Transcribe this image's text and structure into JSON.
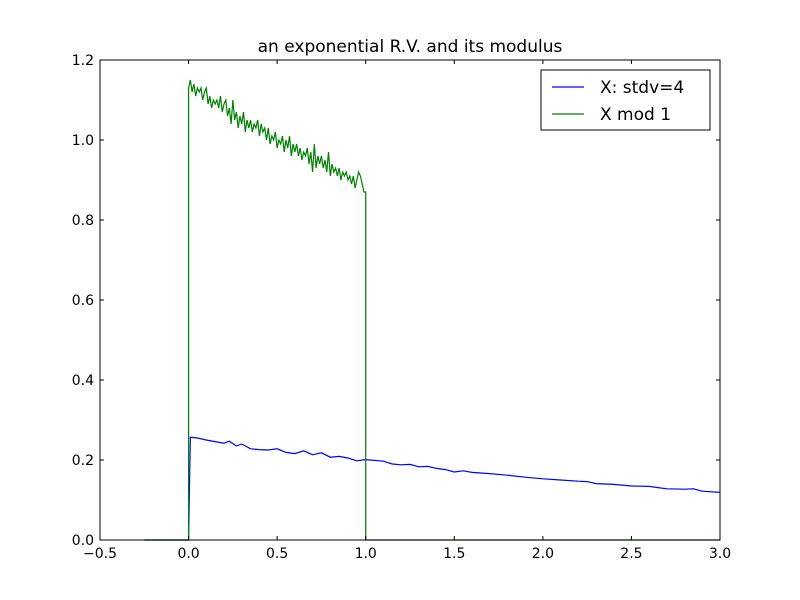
{
  "chart_data": {
    "type": "line",
    "title": "an exponential R.V. and its modulus",
    "xlabel": "",
    "ylabel": "",
    "xlim": [
      -0.5,
      3.0
    ],
    "ylim": [
      0.0,
      1.2
    ],
    "xticks": [
      -0.5,
      0.0,
      0.5,
      1.0,
      1.5,
      2.0,
      2.5,
      3.0
    ],
    "xtick_labels": [
      "−0.5",
      "0.0",
      "0.5",
      "1.0",
      "1.5",
      "2.0",
      "2.5",
      "3.0"
    ],
    "yticks": [
      0.0,
      0.2,
      0.4,
      0.6,
      0.8,
      1.0,
      1.2
    ],
    "ytick_labels": [
      "0.0",
      "0.2",
      "0.4",
      "0.6",
      "0.8",
      "1.0",
      "1.2"
    ],
    "grid": false,
    "legend_position": "top-right",
    "series": [
      {
        "name": "X: stdv=4",
        "color": "#0000ff",
        "points": [
          [
            -0.25,
            0.0
          ],
          [
            0.0,
            0.0
          ],
          [
            0.01,
            0.257
          ],
          [
            0.05,
            0.255
          ],
          [
            0.1,
            0.25
          ],
          [
            0.15,
            0.246
          ],
          [
            0.2,
            0.242
          ],
          [
            0.23,
            0.247
          ],
          [
            0.27,
            0.235
          ],
          [
            0.3,
            0.24
          ],
          [
            0.35,
            0.228
          ],
          [
            0.4,
            0.226
          ],
          [
            0.45,
            0.225
          ],
          [
            0.5,
            0.228
          ],
          [
            0.55,
            0.219
          ],
          [
            0.6,
            0.216
          ],
          [
            0.65,
            0.223
          ],
          [
            0.7,
            0.213
          ],
          [
            0.75,
            0.218
          ],
          [
            0.8,
            0.207
          ],
          [
            0.85,
            0.209
          ],
          [
            0.9,
            0.205
          ],
          [
            0.95,
            0.198
          ],
          [
            1.0,
            0.201
          ],
          [
            1.05,
            0.199
          ],
          [
            1.1,
            0.197
          ],
          [
            1.15,
            0.19
          ],
          [
            1.2,
            0.188
          ],
          [
            1.25,
            0.189
          ],
          [
            1.3,
            0.183
          ],
          [
            1.35,
            0.184
          ],
          [
            1.4,
            0.179
          ],
          [
            1.45,
            0.176
          ],
          [
            1.5,
            0.17
          ],
          [
            1.55,
            0.173
          ],
          [
            1.6,
            0.169
          ],
          [
            1.7,
            0.166
          ],
          [
            1.8,
            0.162
          ],
          [
            1.9,
            0.157
          ],
          [
            2.0,
            0.153
          ],
          [
            2.1,
            0.15
          ],
          [
            2.2,
            0.147
          ],
          [
            2.25,
            0.146
          ],
          [
            2.3,
            0.141
          ],
          [
            2.4,
            0.139
          ],
          [
            2.5,
            0.135
          ],
          [
            2.6,
            0.134
          ],
          [
            2.65,
            0.131
          ],
          [
            2.7,
            0.128
          ],
          [
            2.8,
            0.127
          ],
          [
            2.85,
            0.128
          ],
          [
            2.9,
            0.122
          ],
          [
            3.0,
            0.119
          ]
        ]
      },
      {
        "name": "X mod 1",
        "color": "#008000",
        "points": [
          [
            -0.25,
            0.0
          ],
          [
            0.0,
            0.0
          ],
          [
            0.0,
            1.13
          ],
          [
            0.01,
            1.15
          ],
          [
            0.02,
            1.12
          ],
          [
            0.03,
            1.14
          ],
          [
            0.04,
            1.11
          ],
          [
            0.05,
            1.13
          ],
          [
            0.06,
            1.12
          ],
          [
            0.07,
            1.13
          ],
          [
            0.08,
            1.1
          ],
          [
            0.09,
            1.12
          ],
          [
            0.1,
            1.13
          ],
          [
            0.11,
            1.09
          ],
          [
            0.12,
            1.11
          ],
          [
            0.13,
            1.08
          ],
          [
            0.14,
            1.1
          ],
          [
            0.15,
            1.09
          ],
          [
            0.16,
            1.1
          ],
          [
            0.17,
            1.08
          ],
          [
            0.18,
            1.11
          ],
          [
            0.19,
            1.07
          ],
          [
            0.2,
            1.09
          ],
          [
            0.21,
            1.1
          ],
          [
            0.22,
            1.06
          ],
          [
            0.23,
            1.08
          ],
          [
            0.24,
            1.04
          ],
          [
            0.25,
            1.1
          ],
          [
            0.26,
            1.05
          ],
          [
            0.27,
            1.07
          ],
          [
            0.28,
            1.03
          ],
          [
            0.29,
            1.06
          ],
          [
            0.3,
            1.04
          ],
          [
            0.31,
            1.07
          ],
          [
            0.32,
            1.02
          ],
          [
            0.33,
            1.05
          ],
          [
            0.34,
            1.03
          ],
          [
            0.35,
            1.05
          ],
          [
            0.36,
            1.02
          ],
          [
            0.37,
            1.04
          ],
          [
            0.38,
            1.03
          ],
          [
            0.39,
            1.05
          ],
          [
            0.4,
            1.01
          ],
          [
            0.41,
            1.04
          ],
          [
            0.42,
            1.02
          ],
          [
            0.43,
            1.03
          ],
          [
            0.44,
            1.0
          ],
          [
            0.45,
            1.03
          ],
          [
            0.46,
            0.99
          ],
          [
            0.47,
            1.01
          ],
          [
            0.48,
            1.0
          ],
          [
            0.49,
            1.02
          ],
          [
            0.5,
            0.98
          ],
          [
            0.51,
            1.0
          ],
          [
            0.52,
            0.99
          ],
          [
            0.53,
            1.01
          ],
          [
            0.54,
            0.97
          ],
          [
            0.55,
            1.0
          ],
          [
            0.56,
            0.98
          ],
          [
            0.57,
            1.01
          ],
          [
            0.58,
            0.96
          ],
          [
            0.59,
            0.99
          ],
          [
            0.6,
            0.97
          ],
          [
            0.61,
            0.99
          ],
          [
            0.62,
            0.96
          ],
          [
            0.63,
            0.98
          ],
          [
            0.64,
            0.95
          ],
          [
            0.65,
            0.97
          ],
          [
            0.66,
            0.96
          ],
          [
            0.67,
            0.98
          ],
          [
            0.68,
            0.94
          ],
          [
            0.69,
            0.97
          ],
          [
            0.7,
            0.92
          ],
          [
            0.71,
            0.99
          ],
          [
            0.72,
            0.93
          ],
          [
            0.73,
            0.96
          ],
          [
            0.74,
            0.94
          ],
          [
            0.75,
            0.96
          ],
          [
            0.76,
            0.93
          ],
          [
            0.77,
            0.95
          ],
          [
            0.78,
            0.92
          ],
          [
            0.79,
            0.97
          ],
          [
            0.8,
            0.91
          ],
          [
            0.81,
            0.94
          ],
          [
            0.82,
            0.92
          ],
          [
            0.83,
            0.93
          ],
          [
            0.84,
            0.91
          ],
          [
            0.85,
            0.93
          ],
          [
            0.86,
            0.9
          ],
          [
            0.87,
            0.92
          ],
          [
            0.88,
            0.91
          ],
          [
            0.89,
            0.92
          ],
          [
            0.9,
            0.9
          ],
          [
            0.91,
            0.91
          ],
          [
            0.92,
            0.89
          ],
          [
            0.93,
            0.91
          ],
          [
            0.94,
            0.88
          ],
          [
            0.95,
            0.9
          ],
          [
            0.96,
            0.92
          ],
          [
            0.97,
            0.91
          ],
          [
            0.98,
            0.89
          ],
          [
            0.99,
            0.87
          ],
          [
            1.0,
            0.87
          ],
          [
            1.0,
            0.0
          ],
          [
            3.0,
            0.0
          ]
        ]
      }
    ]
  }
}
